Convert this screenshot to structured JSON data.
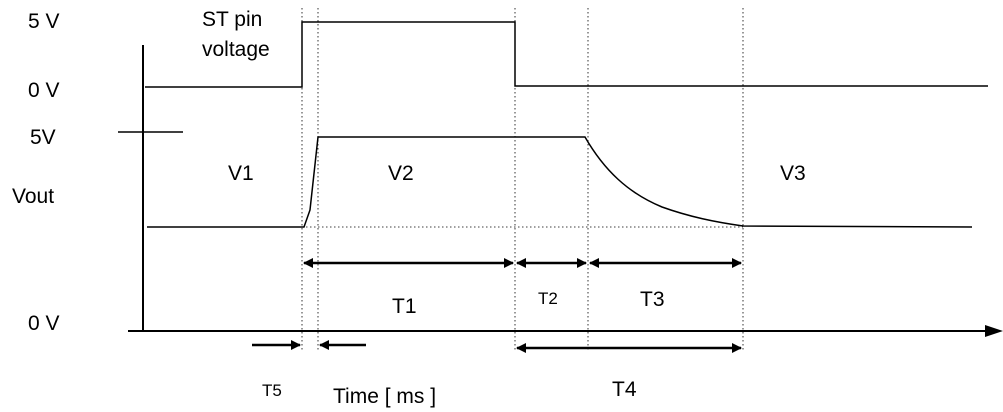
{
  "y_labels": {
    "st_high": "5 V",
    "st_low": "0 V",
    "vout_high": "5V",
    "vout": "Vout",
    "vout_zero": "0 V"
  },
  "signal_title": {
    "line1": "ST pin",
    "line2": "voltage"
  },
  "regions": {
    "v1": "V1",
    "v2": "V2",
    "v3": "V3"
  },
  "intervals": {
    "t1": "T1",
    "t2": "T2",
    "t3": "T3",
    "t4": "T4",
    "t5": "T5"
  },
  "x_label": "Time [ ms ]"
}
